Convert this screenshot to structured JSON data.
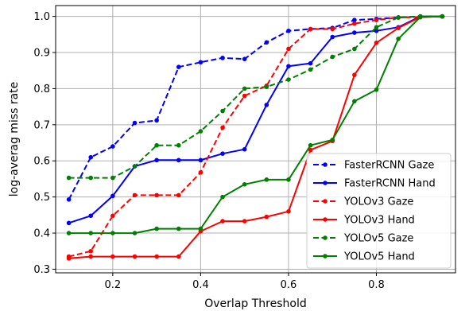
{
  "chart_data": {
    "type": "line",
    "title": "",
    "xlabel": "Overlap Threshold",
    "ylabel": "log-averag miss rate",
    "xlim": [
      0.07,
      0.98
    ],
    "ylim": [
      0.29,
      1.03
    ],
    "xticks": [
      0.2,
      0.4,
      0.6,
      0.8
    ],
    "yticks": [
      0.3,
      0.4,
      0.5,
      0.6,
      0.7,
      0.8,
      0.9,
      1.0
    ],
    "xtick_labels": [
      "0.2",
      "0.4",
      "0.6",
      "0.8"
    ],
    "ytick_labels": [
      "0.3",
      "0.4",
      "0.5",
      "0.6",
      "0.7",
      "0.8",
      "0.9",
      "1.0"
    ],
    "grid": true,
    "legend_position": "lower-right",
    "x": [
      0.1,
      0.15,
      0.2,
      0.25,
      0.3,
      0.35,
      0.4,
      0.45,
      0.5,
      0.55,
      0.6,
      0.65,
      0.7,
      0.75,
      0.8,
      0.85,
      0.9,
      0.95
    ],
    "series": [
      {
        "name": "FasterRCNN Gaze",
        "color": "#0000ff",
        "style": "dashed",
        "values": [
          0.493,
          0.61,
          0.64,
          0.705,
          0.712,
          0.86,
          0.873,
          0.885,
          0.882,
          0.928,
          0.96,
          0.965,
          0.968,
          0.99,
          0.993,
          0.997,
          1.0,
          1.0
        ]
      },
      {
        "name": "FasterRCNN Hand",
        "color": "#0000ff",
        "style": "solid",
        "values": [
          0.428,
          0.448,
          0.503,
          0.585,
          0.602,
          0.602,
          0.602,
          0.62,
          0.632,
          0.755,
          0.862,
          0.87,
          0.943,
          0.955,
          0.96,
          0.97,
          1.0,
          1.0
        ]
      },
      {
        "name": "YOLOv3 Gaze",
        "color": "#ff0000",
        "style": "dashed",
        "values": [
          0.335,
          0.35,
          0.448,
          0.505,
          0.505,
          0.505,
          0.568,
          0.692,
          0.78,
          0.808,
          0.91,
          0.965,
          0.965,
          0.98,
          0.99,
          0.997,
          0.998,
          1.0
        ]
      },
      {
        "name": "YOLOv3 Hand",
        "color": "#ff0000",
        "style": "solid",
        "values": [
          0.33,
          0.335,
          0.335,
          0.335,
          0.335,
          0.335,
          0.405,
          0.433,
          0.433,
          0.445,
          0.46,
          0.63,
          0.655,
          0.838,
          0.927,
          0.968,
          0.998,
          1.0
        ]
      },
      {
        "name": "YOLOv5 Gaze",
        "color": "#008000",
        "style": "dashed",
        "values": [
          0.553,
          0.553,
          0.553,
          0.585,
          0.643,
          0.643,
          0.682,
          0.738,
          0.8,
          0.805,
          0.825,
          0.853,
          0.888,
          0.91,
          0.97,
          0.997,
          1.0,
          1.0
        ]
      },
      {
        "name": "YOLOv5 Hand",
        "color": "#008000",
        "style": "solid",
        "values": [
          0.4,
          0.4,
          0.4,
          0.4,
          0.412,
          0.412,
          0.412,
          0.5,
          0.535,
          0.548,
          0.548,
          0.643,
          0.658,
          0.765,
          0.797,
          0.938,
          0.998,
          1.0
        ]
      }
    ]
  }
}
